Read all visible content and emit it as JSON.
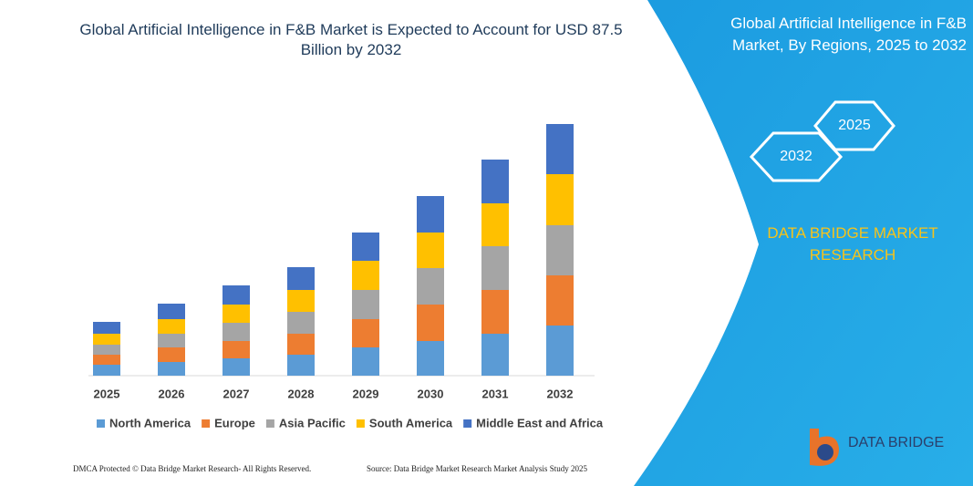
{
  "chart_data": {
    "type": "bar",
    "stacked": true,
    "title": "Global Artificial Intelligence in F&B Market is Expected to Account for USD 87.5 Billion by 2032",
    "categories": [
      "2025",
      "2026",
      "2027",
      "2028",
      "2029",
      "2030",
      "2031",
      "2032"
    ],
    "series": [
      {
        "name": "North America",
        "color": "#5b9bd5",
        "values": [
          12,
          15,
          19,
          23,
          31,
          38,
          46,
          55
        ]
      },
      {
        "name": "Europe",
        "color": "#ed7d31",
        "values": [
          11,
          16,
          19,
          23,
          31,
          40,
          48,
          55
        ]
      },
      {
        "name": "Asia Pacific",
        "color": "#a5a5a5",
        "values": [
          11,
          15,
          20,
          24,
          32,
          40,
          48,
          55
        ]
      },
      {
        "name": "South America",
        "color": "#ffc000",
        "values": [
          12,
          16,
          20,
          24,
          32,
          39,
          47,
          56
        ]
      },
      {
        "name": "Middle East and Africa",
        "color": "#4472c4",
        "values": [
          13,
          17,
          21,
          25,
          31,
          40,
          48,
          55
        ]
      }
    ],
    "legend": "bottom"
  },
  "side_panel": {
    "title": "Global Artificial Intelligence in F&B Market, By Regions, 2025 to 2032",
    "hexagons": [
      "2025",
      "2032"
    ],
    "brand": "DATA BRIDGE MARKET RESEARCH",
    "logo": "DATA BRIDGE"
  },
  "footer": {
    "left": "DMCA Protected © Data Bridge Market Research- All Rights Reserved.",
    "right": "Source: Data Bridge Market Research Market Analysis Study 2025"
  }
}
